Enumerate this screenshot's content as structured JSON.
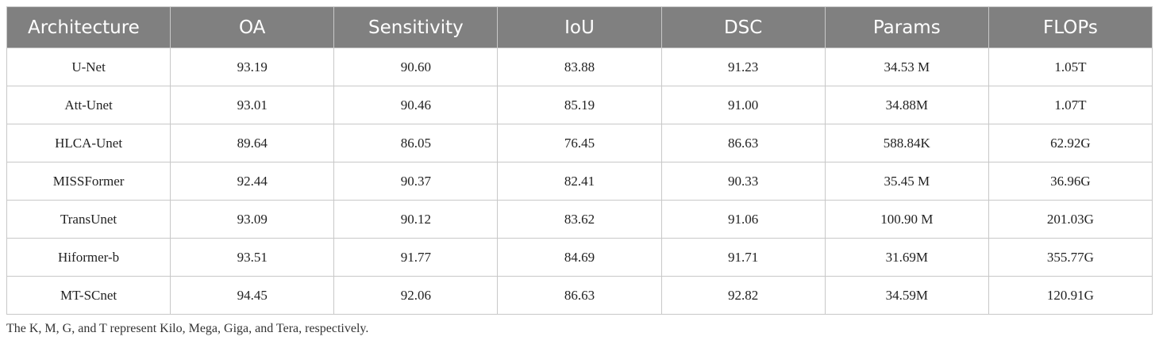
{
  "table": {
    "header": [
      "Architecture",
      "OA",
      "Sensitivity",
      "IoU",
      "DSC",
      "Params",
      "FLOPs"
    ],
    "rows": [
      [
        "U-Net",
        "93.19",
        "90.60",
        "83.88",
        "91.23",
        "34.53 M",
        "1.05T"
      ],
      [
        "Att-Unet",
        "93.01",
        "90.46",
        "85.19",
        "91.00",
        "34.88M",
        "1.07T"
      ],
      [
        "HLCA-Unet",
        "89.64",
        "86.05",
        "76.45",
        "86.63",
        "588.84K",
        "62.92G"
      ],
      [
        "MISSFormer",
        "92.44",
        "90.37",
        "82.41",
        "90.33",
        "35.45 M",
        "36.96G"
      ],
      [
        "TransUnet",
        "93.09",
        "90.12",
        "83.62",
        "91.06",
        "100.90 M",
        "201.03G"
      ],
      [
        "Hiformer-b",
        "93.51",
        "91.77",
        "84.69",
        "91.71",
        "31.69M",
        "355.77G"
      ],
      [
        "MT-SCnet",
        "94.45",
        "92.06",
        "86.63",
        "92.82",
        "34.59M",
        "120.91G"
      ]
    ]
  },
  "footnote": "The K, M, G, and T represent Kilo, Mega, Giga, and Tera, respectively."
}
